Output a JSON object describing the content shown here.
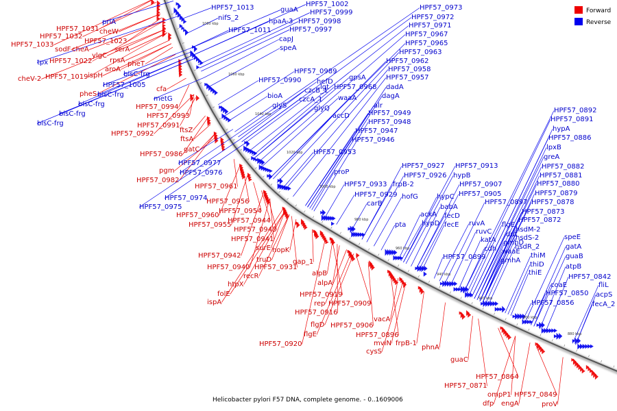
{
  "legend": {
    "forward": {
      "label": "Forward",
      "color": "#ee0000"
    },
    "reverse": {
      "label": "Reverse",
      "color": "#0000ee"
    }
  },
  "caption": "Helicobacter pylori F57 DNA, complete genome. - 0..1609006",
  "backbone_color": "#555555",
  "ticks": [
    "1080 kbp",
    "1060 kbp",
    "1040 kbp",
    "1020 kbp",
    "1000 kbp",
    "980 kbp",
    "960 kbp",
    "940 kbp",
    "920 kbp",
    "900 kbp",
    "880 kbp"
  ],
  "forward_labels": [
    "cheV-2",
    "HPF57_1033",
    "HPF57_1031",
    "HPF57_1032",
    "cheW",
    "sodF",
    "cheA",
    "HPF57_1023",
    "ylgC",
    "serA",
    "HPF57_1022",
    "rpsA",
    "pheT",
    "HPF57_1019",
    "ispH",
    "aroA",
    "pheS",
    "cfa",
    "HPF57_0994",
    "HPF57_0993",
    "HPF57_0991",
    "HPF57_0992",
    "ftsZ",
    "ftsA",
    "gatC",
    "HPF57_0986",
    "pgm",
    "HPF57_0982",
    "HPF57_0961",
    "HPF57_0956",
    "HPF57_0954",
    "HPF57_0960",
    "HPF57_0955",
    "HPF57_0944",
    "HPF57_0943",
    "HPF57_0941",
    "surE",
    "hopK",
    "HPF57_0942",
    "truD",
    "HPF57_0940",
    "HPF57_0931",
    "gap_1",
    "recR",
    "htpX",
    "folE",
    "ispA",
    "alpB",
    "alpA",
    "HPF57_0919",
    "rep",
    "HPF57_0909",
    "HPF57_0916",
    "HPF57_0906",
    "flgD",
    "flgE",
    "HPF57_0920",
    "vacA",
    "HPF57_0896",
    "mviN",
    "frpB-1",
    "cysS",
    "phnA",
    "guaC",
    "HPF57_0864",
    "HPF57_0871",
    "ompP1",
    "dfp",
    "engA",
    "HPF57_0849",
    "proV"
  ],
  "reverse_labels": [
    "priA",
    "tpx",
    "bisC-frg",
    "HPF57_1005",
    "metG",
    "bisC-frg",
    "bisC-frg",
    "bisC-frg",
    "HPF57_1013",
    "nifS_2",
    "HPF57_1011",
    "guaA",
    "hpaA-3",
    "capJ",
    "speA",
    "HPF57_1002",
    "HPF57_0999",
    "HPF57_0998",
    "HPF57_0997",
    "HPF57_0989",
    "HPF57_0990",
    "bioA",
    "glyS",
    "hefD",
    "czcB_1",
    "czcA_1",
    "glyQ",
    "lgt",
    "accD",
    "gpsA",
    "HPF57_0968",
    "waaA",
    "HPF57_0977",
    "HPF57_0976",
    "HPF57_0974",
    "HPF57_0975",
    "HPF57_0953",
    "HPF57_0973",
    "HPF57_0972",
    "HPF57_0971",
    "HPF57_0967",
    "HPF57_0965",
    "HPF57_0963",
    "HPF57_0962",
    "HPF57_0958",
    "HPF57_0957",
    "dadA",
    "dagA",
    "alr",
    "HPF57_0949",
    "HPF57_0948",
    "HPF57_0947",
    "HPF57_0946",
    "proP",
    "HPF57_0933",
    "HPF57_0929",
    "carB",
    "HPF57_0927",
    "HPF57_0926",
    "frpB-2",
    "hofG",
    "pta",
    "HPF57_0913",
    "hypB",
    "HPF57_0907",
    "hypC",
    "HPF57_0905",
    "babA",
    "ackA",
    "fecD",
    "hypD",
    "fecE",
    "ruvA",
    "ruvC",
    "katA",
    "cdh",
    "HPF57_0899",
    "HPF57_0897",
    "flgE",
    "dut",
    "gmhD",
    "waaE",
    "gmhA",
    "HPF57_0892",
    "HPF57_0891",
    "hypA",
    "HPF57_0886",
    "lpxB",
    "greA",
    "HPF57_0882",
    "HPF57_0881",
    "HPF57_0880",
    "HPF57_0879",
    "HPF57_0878",
    "HPF57_0873",
    "HPF57_0872",
    "hsdM-2",
    "hsdS-2",
    "hsdR_2",
    "thiM",
    "thiD",
    "thiE",
    "speE",
    "gatA",
    "guaB",
    "atpB",
    "HPF57_0842",
    "coaE",
    "fliL",
    "HPF57_0850",
    "acpS",
    "HPF57_0856",
    "fecA_2"
  ]
}
